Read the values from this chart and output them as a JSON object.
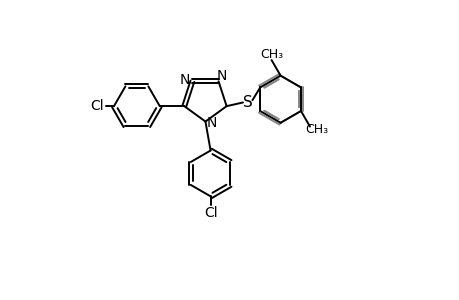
{
  "background_color": "#ffffff",
  "line_color": "#000000",
  "gray_color": "#888888",
  "line_width": 1.4,
  "font_size": 10,
  "figsize": [
    4.6,
    3.0
  ],
  "dpi": 100,
  "xlim": [
    0,
    9.2
  ],
  "ylim": [
    -3.5,
    5.5
  ]
}
